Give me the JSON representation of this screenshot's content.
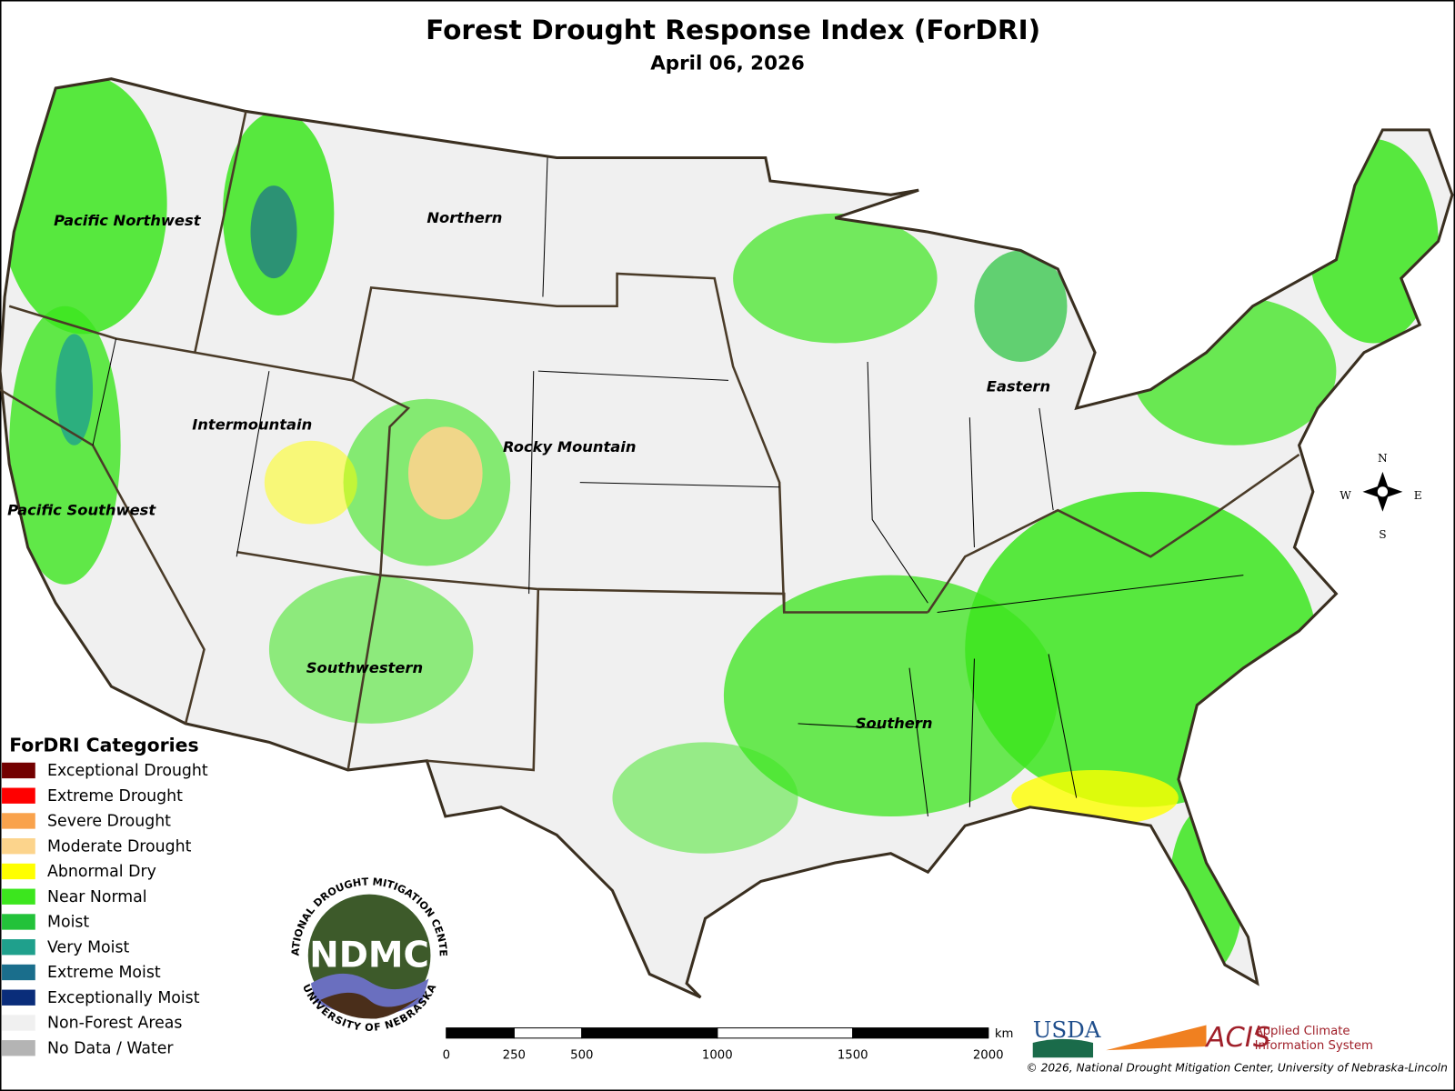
{
  "title": "Forest Drought Response Index (ForDRI)",
  "subtitle": "April 06, 2026",
  "regions": [
    "Pacific Northwest",
    "Northern",
    "Intermountain",
    "Rocky Mountain",
    "Pacific Southwest",
    "Eastern",
    "Southwestern",
    "Southern"
  ],
  "legend": {
    "title": "ForDRI Categories",
    "items": [
      {
        "label": "Exceptional Drought",
        "color": "#730000"
      },
      {
        "label": "Extreme Drought",
        "color": "#ff0000"
      },
      {
        "label": "Severe Drought",
        "color": "#f9a24c"
      },
      {
        "label": "Moderate Drought",
        "color": "#fcd48c"
      },
      {
        "label": "Abnormal Dry",
        "color": "#ffff00"
      },
      {
        "label": "Near Normal",
        "color": "#3ce61e"
      },
      {
        "label": "Moist",
        "color": "#23c23a"
      },
      {
        "label": "Very Moist",
        "color": "#1fa08c"
      },
      {
        "label": "Extreme Moist",
        "color": "#1a6e8c"
      },
      {
        "label": "Exceptionally Moist",
        "color": "#0a2d7a"
      },
      {
        "label": "Non-Forest Areas",
        "color": "#f0f0f0"
      },
      {
        "label": "No Data / Water",
        "color": "#b4b4b4"
      }
    ]
  },
  "scale_bar": {
    "ticks": [
      0,
      250,
      500,
      1000,
      1500,
      2000
    ],
    "unit": "km"
  },
  "compass": {
    "north": "N",
    "south": "S",
    "east": "E",
    "west": "W"
  },
  "logos": {
    "ndmc": "NDMC",
    "ndmc_top": "NATIONAL DROUGHT MITIGATION CENTER",
    "ndmc_bottom": "UNIVERSITY OF NEBRASKA",
    "usda": "USDA",
    "acis": "ACIS",
    "acis_line1": "Applied Climate",
    "acis_line2": "Information System"
  },
  "copyright": "© 2026, National Drought Mitigation Center, University of Nebraska-Lincoln"
}
